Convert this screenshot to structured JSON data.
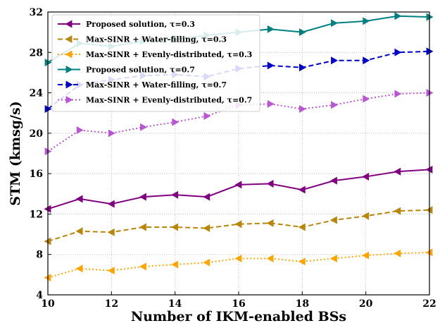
{
  "chart_data": {
    "type": "line",
    "xlabel": "Number of IKM-enabled BSs",
    "ylabel": "STM (kmsg/s)",
    "xlim": [
      10,
      22
    ],
    "ylim": [
      4,
      32
    ],
    "x_ticks": [
      "10",
      "12",
      "14",
      "16",
      "18",
      "20",
      "22"
    ],
    "y_ticks": [
      "4",
      "8",
      "12",
      "16",
      "20",
      "24",
      "28",
      "32"
    ],
    "grid": true,
    "legend_position": "top-left",
    "x": [
      10,
      11,
      12,
      13,
      14,
      15,
      16,
      17,
      18,
      19,
      20,
      21,
      22
    ],
    "series": [
      {
        "name": "Proposed solution, τ=0.3",
        "color": "#800080",
        "line_style": "solid",
        "marker": "triangle-left",
        "values": [
          12.5,
          13.5,
          13.0,
          13.7,
          13.9,
          13.7,
          14.9,
          15.0,
          14.4,
          15.3,
          15.7,
          16.2,
          16.4
        ]
      },
      {
        "name": "Max-SINR + Water-filling, τ=0.3",
        "color": "#B8860B",
        "line_style": "dashed",
        "marker": "triangle-left",
        "values": [
          9.3,
          10.3,
          10.2,
          10.7,
          10.7,
          10.6,
          11.0,
          11.1,
          10.7,
          11.4,
          11.8,
          12.3,
          12.4
        ]
      },
      {
        "name": "Max-SINR + Evenly-distributed, τ=0.3",
        "color": "#FFA500",
        "line_style": "dotted",
        "marker": "triangle-left",
        "values": [
          5.7,
          6.6,
          6.4,
          6.8,
          7.0,
          7.2,
          7.6,
          7.6,
          7.3,
          7.6,
          7.9,
          8.1,
          8.2
        ]
      },
      {
        "name": "Proposed solution, τ=0.7",
        "color": "#008080",
        "line_style": "solid",
        "marker": "triangle-right",
        "values": [
          27.0,
          28.9,
          28.6,
          29.1,
          29.3,
          29.7,
          30.0,
          30.3,
          30.0,
          30.9,
          31.1,
          31.6,
          31.5
        ]
      },
      {
        "name": "Max-SINR + Water-filling, τ=0.7",
        "color": "#0000CD",
        "line_style": "dashed",
        "marker": "triangle-right",
        "values": [
          22.4,
          24.8,
          25.3,
          25.7,
          25.8,
          25.6,
          26.4,
          26.7,
          26.5,
          27.2,
          27.2,
          28.0,
          28.1
        ]
      },
      {
        "name": "Max-SINR + Evenly-distributed, τ=0.7",
        "color": "#BA55D3",
        "line_style": "dotted",
        "marker": "triangle-right",
        "values": [
          18.2,
          20.3,
          20.0,
          20.6,
          21.1,
          21.7,
          22.8,
          22.9,
          22.4,
          22.8,
          23.4,
          23.9,
          24.0
        ]
      }
    ]
  }
}
